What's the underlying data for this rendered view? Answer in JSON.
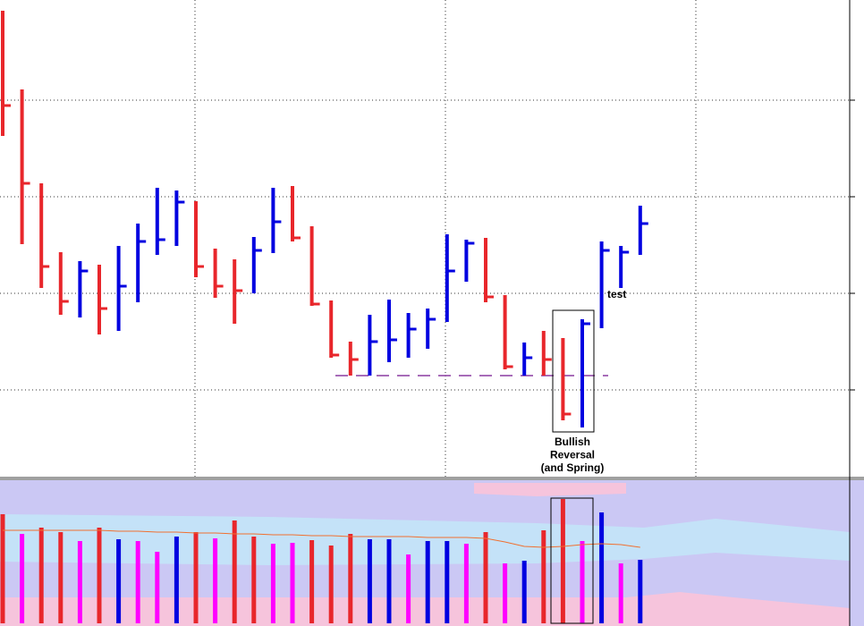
{
  "chart_data": [
    {
      "type": "ohlc",
      "ylim": [
        0,
        535
      ],
      "yticks": [
        99,
        207,
        315,
        423
      ],
      "grid": true,
      "up_color": "#0000e0",
      "down_color": "#e8262b",
      "directions": [
        "down",
        "down",
        "down",
        "down",
        "up",
        "down",
        "up",
        "up",
        "up",
        "up",
        "down",
        "down",
        "down",
        "up",
        "up",
        "down",
        "down",
        "down",
        "down",
        "up",
        "up",
        "up",
        "up",
        "up",
        "up",
        "down",
        "down",
        "up",
        "down",
        "down",
        "up",
        "up",
        "up",
        "up"
      ],
      "high": [
        523,
        435,
        330,
        253,
        243,
        239,
        260,
        285,
        325,
        322,
        310,
        257,
        245,
        270,
        325,
        327,
        282,
        199,
        153,
        183,
        200,
        185,
        190,
        273,
        267,
        269,
        205,
        152,
        165,
        157,
        178,
        265,
        260,
        305
      ],
      "low": [
        383,
        262,
        213,
        183,
        180,
        161,
        165,
        197,
        250,
        260,
        225,
        202,
        173,
        207,
        252,
        265,
        193,
        135,
        115,
        115,
        130,
        135,
        145,
        175,
        220,
        197,
        122,
        115,
        115,
        65,
        57,
        168,
        213,
        250
      ],
      "close": [
        417,
        330,
        237,
        198,
        232,
        190,
        215,
        265,
        267,
        309,
        237,
        215,
        210,
        255,
        287,
        269,
        195,
        138,
        133,
        153,
        155,
        167,
        178,
        232,
        263,
        203,
        125,
        135,
        133,
        72,
        173,
        255,
        253,
        285
      ],
      "support_level": 115,
      "annotations": [
        {
          "lines": [
            "Bullish",
            "Reversal",
            "(and Spring)"
          ]
        },
        {
          "text": "test"
        }
      ]
    },
    {
      "type": "volume",
      "ylim": [
        0,
        160
      ],
      "colors": [
        "#e8262b",
        "#ff00ff",
        "#e8262b",
        "#e8262b",
        "#ff00ff",
        "#e8262b",
        "#0000e0",
        "#ff00ff",
        "#ff00ff",
        "#0000e0",
        "#e8262b",
        "#ff00ff",
        "#e8262b",
        "#e8262b",
        "#ff00ff",
        "#ff00ff",
        "#e8262b",
        "#e8262b",
        "#e8262b",
        "#0000e0",
        "#0000e0",
        "#ff00ff",
        "#0000e0",
        "#0000e0",
        "#ff00ff",
        "#e8262b",
        "#ff00ff",
        "#0000e0",
        "#e8262b",
        "#e8262b",
        "#ff00ff",
        "#0000e0",
        "#ff00ff",
        "#0000e0"
      ],
      "values": [
        122,
        100,
        107,
        102,
        92,
        107,
        94,
        92,
        80,
        97,
        102,
        95,
        115,
        97,
        89,
        90,
        93,
        87,
        100,
        94,
        94,
        77,
        92,
        92,
        89,
        102,
        67,
        70,
        104,
        139,
        92,
        124,
        67,
        71
      ],
      "average": [
        104,
        104,
        104,
        104,
        104,
        104,
        103,
        103,
        102,
        102,
        101,
        101,
        100,
        100,
        99,
        99,
        98,
        98,
        97,
        97,
        97,
        97,
        96,
        96,
        96,
        95,
        91,
        86,
        85,
        86,
        88,
        89,
        88,
        85
      ],
      "average_color": "#f07030"
    }
  ]
}
